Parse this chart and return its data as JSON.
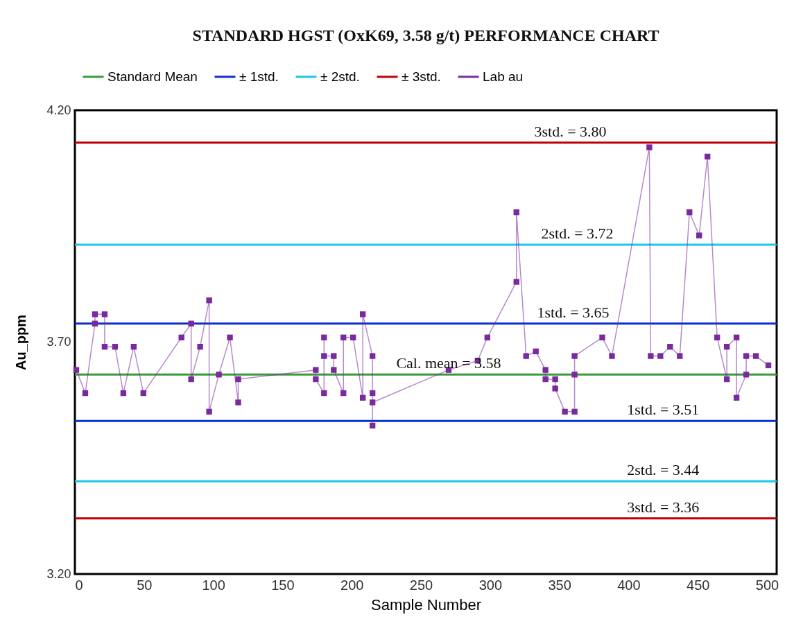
{
  "chart_data": {
    "type": "line",
    "title": "STANDARD HGST (OxK69, 3.58 g/t) PERFORMANCE CHART",
    "xlabel": "Sample Number",
    "ylabel": "Au_ppm",
    "xlim": [
      0,
      507
    ],
    "xticks": [
      0,
      50,
      100,
      150,
      200,
      250,
      300,
      350,
      400,
      450,
      500
    ],
    "ylim": [
      3.2,
      4.2
    ],
    "yticks": [
      {
        "value": 3.2,
        "label": "3.20"
      },
      {
        "value": 3.7,
        "label": "3.70"
      },
      {
        "value": 4.2,
        "label": "4.20"
      }
    ],
    "grid": false,
    "legend": "top",
    "line_style": "solid",
    "series": [
      {
        "name": "Standard Mean",
        "color": "#3a9a3a",
        "marker": "none",
        "x": [
          0,
          507
        ],
        "values": [
          3.63,
          3.63
        ]
      },
      {
        "name": "± 1std.",
        "color": "#0a2fd0",
        "marker": "none",
        "x": [
          0,
          507
        ],
        "values": [
          3.74,
          3.74
        ]
      },
      {
        "color": "#0a2fd0",
        "marker": "none",
        "x": [
          0,
          507
        ],
        "values": [
          3.53,
          3.53
        ]
      },
      {
        "name": "± 2std.",
        "color": "#19c8e8",
        "marker": "none",
        "x": [
          0,
          507
        ],
        "values": [
          3.91,
          3.91
        ]
      },
      {
        "color": "#19c8e8",
        "marker": "none",
        "x": [
          0,
          507
        ],
        "values": [
          3.4,
          3.4
        ]
      },
      {
        "name": "± 3std.",
        "color": "#c00000",
        "marker": "none",
        "x": [
          0,
          507
        ],
        "values": [
          4.13,
          4.13
        ]
      },
      {
        "color": "#c00000",
        "marker": "none",
        "x": [
          0,
          507
        ],
        "values": [
          3.32,
          3.32
        ]
      },
      {
        "name": "Lab au",
        "color": "#7a2a9e",
        "marker": "square",
        "x": [
          1,
          7.5,
          14.5,
          14.5,
          21.5,
          21.5,
          29,
          35,
          42.5,
          49.5,
          77,
          84,
          84,
          90.5,
          97,
          97,
          104,
          112,
          118,
          118,
          174,
          174,
          180,
          180,
          180,
          187,
          187,
          194,
          194,
          201,
          208,
          208,
          215,
          215,
          215,
          215,
          270,
          291,
          298,
          319,
          319,
          326,
          333,
          340,
          340,
          347,
          347,
          354,
          361,
          361,
          361,
          381,
          388,
          415,
          416,
          423,
          430,
          437,
          444,
          451,
          457,
          464,
          471,
          471,
          478,
          478,
          485,
          485,
          492,
          501
        ],
        "values": [
          3.64,
          3.59,
          3.74,
          3.76,
          3.76,
          3.69,
          3.69,
          3.59,
          3.69,
          3.59,
          3.71,
          3.74,
          3.62,
          3.69,
          3.79,
          3.55,
          3.63,
          3.71,
          3.57,
          3.62,
          3.64,
          3.62,
          3.59,
          3.71,
          3.67,
          3.67,
          3.64,
          3.59,
          3.71,
          3.71,
          3.58,
          3.76,
          3.67,
          3.59,
          3.52,
          3.57,
          3.64,
          3.66,
          3.71,
          3.83,
          3.98,
          3.67,
          3.68,
          3.64,
          3.62,
          3.62,
          3.6,
          3.55,
          3.55,
          3.63,
          3.67,
          3.71,
          3.67,
          4.12,
          3.67,
          3.67,
          3.69,
          3.67,
          3.98,
          3.93,
          4.1,
          3.71,
          3.62,
          3.69,
          3.71,
          3.58,
          3.63,
          3.67,
          3.67,
          3.65
        ]
      }
    ],
    "annotations": [
      {
        "text": "3std. = 3.80",
        "x": 358,
        "y": 4.13
      },
      {
        "text": "2std. = 3.72",
        "x": 363,
        "y": 3.91
      },
      {
        "text": "1std. = 3.65",
        "x": 360,
        "y": 3.74
      },
      {
        "text": "Cal. mean = 3.58",
        "x": 270,
        "y": 3.63
      },
      {
        "text": "1std. = 3.51",
        "x": 425,
        "y": 3.53
      },
      {
        "text": "2std. = 3.44",
        "x": 425,
        "y": 3.4
      },
      {
        "text": "3std. = 3.36",
        "x": 425,
        "y": 3.32
      }
    ]
  }
}
